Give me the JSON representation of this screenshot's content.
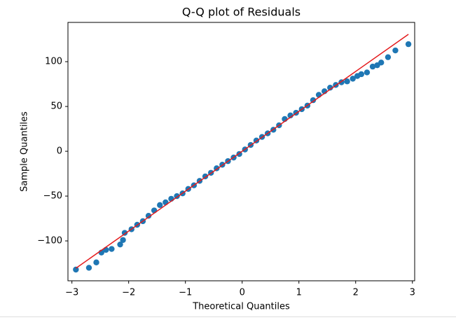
{
  "chart_data": {
    "type": "scatter",
    "title": "Q-Q plot of Residuals",
    "x_label": "Theoretical Quantiles",
    "y_label": "Sample Quantiles",
    "xlim": [
      -3.07,
      3.04
    ],
    "ylim": [
      -144.5,
      143.8
    ],
    "xticks": [
      {
        "value": -3,
        "label": "−3"
      },
      {
        "value": -2,
        "label": "−2"
      },
      {
        "value": -1,
        "label": "−1"
      },
      0,
      1,
      2,
      3
    ],
    "yticks": [
      {
        "value": -100,
        "label": "−100"
      },
      {
        "value": -50,
        "label": "−50"
      },
      0,
      50,
      100
    ],
    "series": [
      {
        "color": "#1f77b4",
        "x": [
          -2.93,
          -2.7,
          -2.57,
          -2.48,
          -2.4,
          -2.3,
          -2.15,
          -2.1,
          -2.07,
          -1.95,
          -1.85,
          -1.75,
          -1.65,
          -1.55,
          -1.45,
          -1.35,
          -1.25,
          -1.15,
          -1.05,
          -0.95,
          -0.85,
          -0.75,
          -0.65,
          -0.55,
          -0.45,
          -0.35,
          -0.25,
          -0.15,
          -0.05,
          0.05,
          0.15,
          0.25,
          0.35,
          0.45,
          0.55,
          0.65,
          0.75,
          0.85,
          0.95,
          1.05,
          1.15,
          1.25,
          1.35,
          1.45,
          1.55,
          1.65,
          1.75,
          1.85,
          1.95,
          2.03,
          2.1,
          2.2,
          2.3,
          2.38,
          2.45,
          2.57,
          2.7,
          2.93
        ],
        "values": [
          -132,
          -130,
          -124,
          -113,
          -110,
          -109,
          -104,
          -99,
          -91,
          -87,
          -82,
          -78,
          -72,
          -66,
          -60,
          -57,
          -53,
          -50,
          -47,
          -42,
          -38,
          -33,
          -28,
          -24,
          -19,
          -15,
          -11,
          -7,
          -3,
          2,
          7,
          12,
          16,
          20,
          24,
          29,
          36,
          40,
          43,
          47,
          51,
          57,
          63,
          67,
          71,
          74,
          77,
          78,
          81,
          84,
          86,
          88,
          94.5,
          96,
          99,
          105,
          112.5,
          119.5
        ]
      },
      {
        "color": "#e41a1c",
        "mode": "line",
        "x": [
          -2.93,
          2.93
        ],
        "values": [
          -130.5,
          130.5
        ]
      }
    ]
  }
}
